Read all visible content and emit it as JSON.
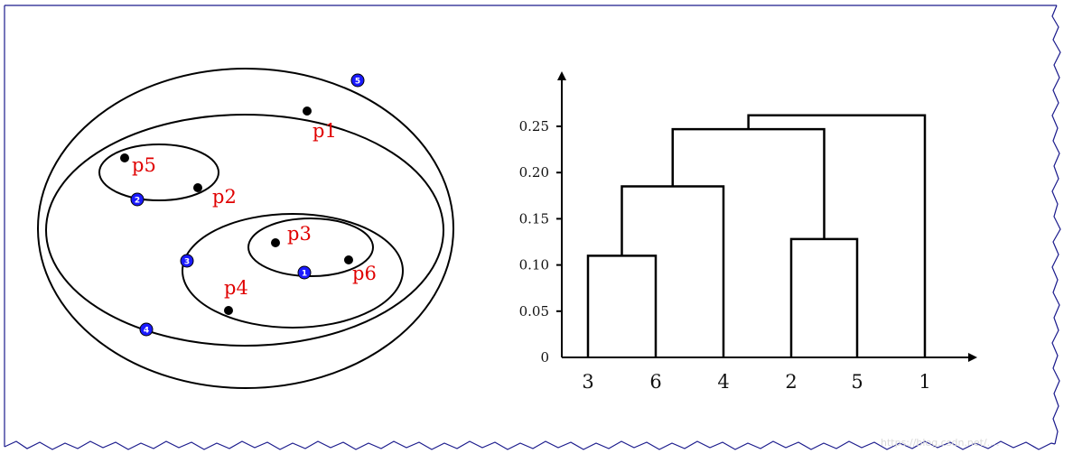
{
  "colors": {
    "point": "#000000",
    "label": "#e00000",
    "merge_marker": "#1a1aff",
    "frame": "#1a1a8c"
  },
  "cluster_diagram": {
    "points": [
      {
        "label": "p1"
      },
      {
        "label": "p2"
      },
      {
        "label": "p3"
      },
      {
        "label": "p4"
      },
      {
        "label": "p5"
      },
      {
        "label": "p6"
      }
    ],
    "merge_markers": [
      "1",
      "2",
      "3",
      "4",
      "5"
    ]
  },
  "chart_data": {
    "type": "dendrogram",
    "leaves": [
      "3",
      "6",
      "4",
      "2",
      "5",
      "1"
    ],
    "y_ticks": [
      "0",
      "0.05",
      "0.10",
      "0.15",
      "0.20",
      "0.25"
    ],
    "ylim": [
      0,
      0.27
    ],
    "merges": [
      {
        "left": "3",
        "right": "6",
        "height": 0.11
      },
      {
        "left": "2",
        "right": "5",
        "height": 0.128
      },
      {
        "left": "{3,6}",
        "right": "4",
        "height": 0.185
      },
      {
        "left": "{3,6,4}",
        "right": "{2,5}",
        "height": 0.247
      },
      {
        "left": "{3,6,4,2,5}",
        "right": "1",
        "height": 0.262
      }
    ]
  },
  "watermark": "https://blog.csdn.net/...."
}
